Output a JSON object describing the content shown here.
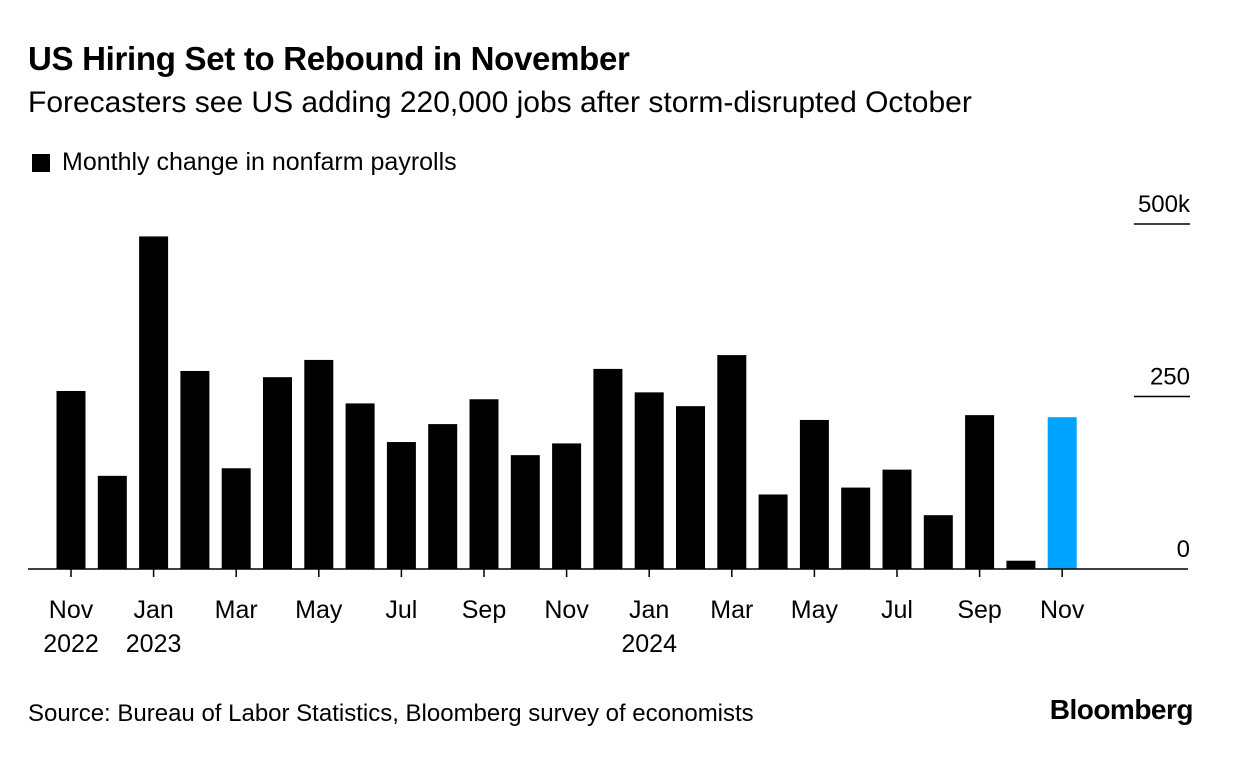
{
  "header": {
    "title": "US Hiring Set to Rebound in November",
    "subtitle": "Forecasters see US adding 220,000 jobs after storm-disrupted October"
  },
  "legend": {
    "label": "Monthly change in nonfarm payrolls",
    "color": "#000000"
  },
  "footer": {
    "source": "Source: Bureau of Labor Statistics, Bloomberg survey of economists",
    "brand": "Bloomberg"
  },
  "chart_data": {
    "type": "bar",
    "title": "US Hiring Set to Rebound in November",
    "subtitle": "Forecasters see US adding 220,000 jobs after storm-disrupted October",
    "ylabel": "Monthly change in nonfarm payrolls",
    "ylim": [
      0,
      500
    ],
    "yticks": [
      {
        "value": 0,
        "label": "0"
      },
      {
        "value": 250,
        "label": "250"
      },
      {
        "value": 500,
        "label": "500k"
      }
    ],
    "categories": [
      "Nov 2022",
      "Dec 2022",
      "Jan 2023",
      "Feb 2023",
      "Mar 2023",
      "Apr 2023",
      "May 2023",
      "Jun 2023",
      "Jul 2023",
      "Aug 2023",
      "Sep 2023",
      "Oct 2023",
      "Nov 2023",
      "Dec 2023",
      "Jan 2024",
      "Feb 2024",
      "Mar 2024",
      "Apr 2024",
      "May 2024",
      "Jun 2024",
      "Jul 2024",
      "Aug 2024",
      "Sep 2024",
      "Oct 2024",
      "Nov 2024"
    ],
    "values": [
      258,
      135,
      482,
      287,
      146,
      278,
      303,
      240,
      184,
      210,
      246,
      165,
      182,
      290,
      256,
      236,
      310,
      108,
      216,
      118,
      144,
      78,
      223,
      12,
      220
    ],
    "forecast_index": 24,
    "colors": {
      "actual": "#000000",
      "forecast": "#00a3ff"
    },
    "xticks": [
      {
        "index": 0,
        "line1": "Nov",
        "line2": "2022"
      },
      {
        "index": 2,
        "line1": "Jan",
        "line2": "2023"
      },
      {
        "index": 4,
        "line1": "Mar",
        "line2": ""
      },
      {
        "index": 6,
        "line1": "May",
        "line2": ""
      },
      {
        "index": 8,
        "line1": "Jul",
        "line2": ""
      },
      {
        "index": 10,
        "line1": "Sep",
        "line2": ""
      },
      {
        "index": 12,
        "line1": "Nov",
        "line2": ""
      },
      {
        "index": 14,
        "line1": "Jan",
        "line2": "2024"
      },
      {
        "index": 16,
        "line1": "Mar",
        "line2": ""
      },
      {
        "index": 18,
        "line1": "May",
        "line2": ""
      },
      {
        "index": 20,
        "line1": "Jul",
        "line2": ""
      },
      {
        "index": 22,
        "line1": "Sep",
        "line2": ""
      },
      {
        "index": 24,
        "line1": "Nov",
        "line2": ""
      }
    ]
  }
}
